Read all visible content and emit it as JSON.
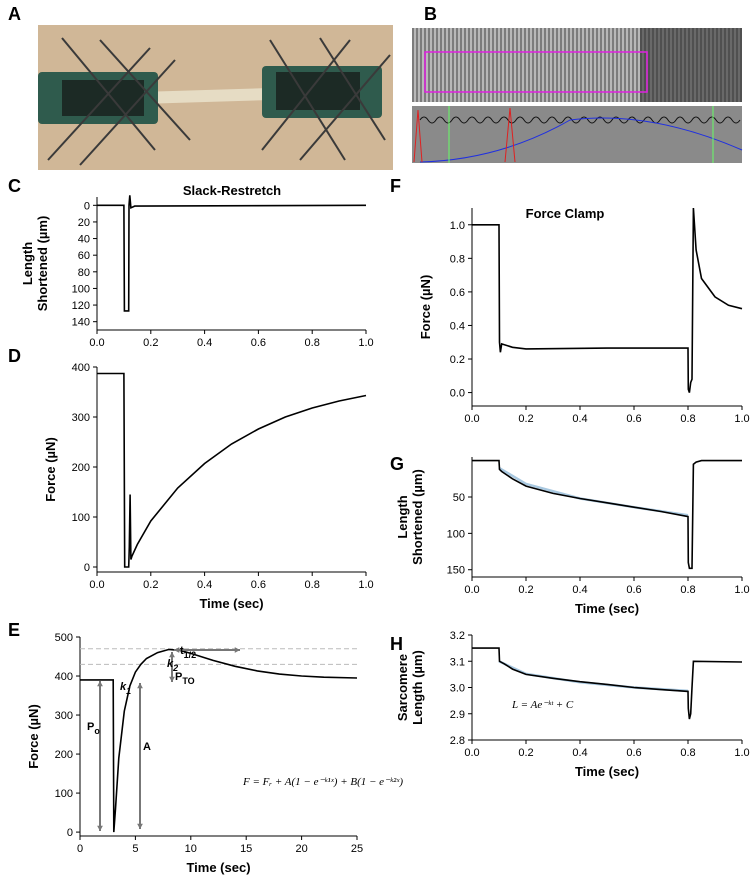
{
  "panel_labels": [
    "A",
    "B"
  ],
  "chart_data": [
    {
      "type": "line",
      "panel": "C",
      "title": "Slack-Restretch",
      "ylabel": [
        "Length",
        "Shortened (µm)"
      ],
      "xlim": [
        0,
        1
      ],
      "xticks": [
        {
          "value": 0,
          "label": "0.0"
        },
        0.2,
        0.4,
        0.6,
        0.8,
        {
          "value": 1,
          "label": "1.0"
        }
      ],
      "ylim": [
        -10,
        150
      ],
      "yticks": [
        0,
        20,
        40,
        60,
        80,
        100,
        120,
        140
      ],
      "y_inverted": true,
      "series": [
        {
          "color": "#000000",
          "x": [
            0,
            0.1,
            0.102,
            0.118,
            0.119,
            0.122,
            0.126,
            0.14,
            1
          ],
          "values": [
            0,
            0,
            127,
            127,
            0,
            -12,
            3,
            1,
            0
          ]
        }
      ]
    },
    {
      "type": "line",
      "panel": "D",
      "ylabel": [
        "Force (µN)"
      ],
      "xlabel": "Time (sec)",
      "xlim": [
        0,
        1
      ],
      "xticks": [
        {
          "value": 0,
          "label": "0.0"
        },
        0.2,
        0.4,
        0.6,
        0.8,
        {
          "value": 1,
          "label": "1.0"
        }
      ],
      "ylim": [
        -10,
        400
      ],
      "yticks": [
        0,
        100,
        200,
        300,
        400
      ],
      "series": [
        {
          "color": "#000000",
          "x": [
            0,
            0.1,
            0.103,
            0.118,
            0.12,
            0.123,
            0.126,
            0.13,
            0.15,
            0.2,
            0.3,
            0.4,
            0.5,
            0.6,
            0.7,
            0.8,
            0.9,
            1
          ],
          "values": [
            387,
            387,
            0,
            0,
            40,
            145,
            15,
            22,
            45,
            92,
            158,
            207,
            246,
            276,
            300,
            318,
            332,
            343
          ]
        }
      ]
    },
    {
      "type": "line",
      "panel": "E",
      "ylabel": [
        "Force (µN)"
      ],
      "xlabel": "Time (sec)",
      "xlim": [
        0,
        25
      ],
      "xticks": [
        0,
        5,
        10,
        15,
        20,
        25
      ],
      "ylim": [
        -10,
        500
      ],
      "yticks": [
        0,
        100,
        200,
        300,
        400,
        500
      ],
      "hlines": [
        470,
        430
      ],
      "annotations": [
        {
          "main": "P",
          "sub": "o"
        },
        {
          "main": "A"
        },
        {
          "main": "k",
          "sub": "1"
        },
        {
          "main": "k",
          "sub": "2"
        },
        {
          "main": "P",
          "sub": "TO"
        },
        {
          "main": "t",
          "sub": "1/2"
        }
      ],
      "equation": "F = Fᵣ + A(1 − e⁻ᵏ¹ˣ) + B(1 − e⁻ᵏ²ˣ)",
      "series": [
        {
          "color": "#000000",
          "x": [
            0,
            3,
            3.05,
            3.2,
            3.5,
            4,
            4.5,
            5,
            5.5,
            6,
            7,
            8,
            9,
            10,
            12,
            14,
            16,
            18,
            20,
            22,
            25
          ],
          "values": [
            390,
            390,
            0,
            60,
            190,
            310,
            375,
            410,
            430,
            445,
            460,
            468,
            466,
            458,
            440,
            425,
            413,
            405,
            400,
            397,
            395
          ]
        }
      ]
    },
    {
      "type": "line",
      "panel": "F",
      "title": "Force Clamp",
      "ylabel": [
        "Force (µN)"
      ],
      "xlim": [
        0,
        1
      ],
      "xticks": [
        {
          "value": 0,
          "label": "0.0"
        },
        0.2,
        0.4,
        0.6,
        0.8,
        {
          "value": 1,
          "label": "1.0"
        }
      ],
      "ylim": [
        -0.08,
        1.1
      ],
      "yticks": [
        {
          "value": 0,
          "label": "0.0"
        },
        0.2,
        0.4,
        0.6,
        0.8,
        {
          "value": 1,
          "label": "1.0"
        }
      ],
      "series": [
        {
          "color": "#000000",
          "x": [
            0,
            0.1,
            0.102,
            0.105,
            0.11,
            0.15,
            0.2,
            0.5,
            0.8,
            0.801,
            0.805,
            0.81,
            0.815,
            0.82,
            0.83,
            0.85,
            0.9,
            0.95,
            1
          ],
          "values": [
            1.0,
            1.0,
            0.3,
            0.24,
            0.29,
            0.27,
            0.26,
            0.265,
            0.265,
            0.02,
            0.0,
            0.06,
            0.08,
            1.1,
            0.85,
            0.68,
            0.57,
            0.52,
            0.5
          ]
        }
      ]
    },
    {
      "type": "line",
      "panel": "G",
      "ylabel": [
        "Length",
        "Shortened (µm)"
      ],
      "xlabel": "Time (sec)",
      "xlim": [
        0,
        1
      ],
      "xticks": [
        {
          "value": 0,
          "label": "0.0"
        },
        0.2,
        0.4,
        0.6,
        0.8,
        {
          "value": 1,
          "label": "1.0"
        }
      ],
      "ylim": [
        -5,
        160
      ],
      "yticks": [
        50,
        100,
        150
      ],
      "y_inverted": true,
      "series": [
        {
          "color": "#a8c8e0",
          "x": [
            0.1,
            0.2,
            0.4,
            0.6,
            0.8
          ],
          "values": [
            10,
            32,
            52,
            64,
            75
          ]
        },
        {
          "color": "#000000",
          "x": [
            0,
            0.1,
            0.102,
            0.11,
            0.15,
            0.2,
            0.3,
            0.4,
            0.5,
            0.6,
            0.7,
            0.8,
            0.801,
            0.805,
            0.815,
            0.82,
            0.83,
            0.85,
            1
          ],
          "values": [
            0,
            0,
            12,
            15,
            25,
            35,
            45,
            52,
            58,
            64,
            70,
            77,
            140,
            148,
            148,
            5,
            2,
            0,
            0
          ]
        }
      ]
    },
    {
      "type": "line",
      "panel": "H",
      "ylabel": [
        "Sarcomere",
        "Length (µm)"
      ],
      "xlabel": "Time (sec)",
      "xlim": [
        0,
        1
      ],
      "xticks": [
        {
          "value": 0,
          "label": "0.0"
        },
        0.2,
        0.4,
        0.6,
        0.8,
        {
          "value": 1,
          "label": "1.0"
        }
      ],
      "ylim": [
        2.8,
        3.2
      ],
      "yticks": [
        2.8,
        2.9,
        {
          "value": 3,
          "label": "3.0"
        },
        3.1,
        3.2
      ],
      "equation": "L = Ae⁻ᵏᵗ + C",
      "series": [
        {
          "color": "#a8c8e0",
          "x": [
            0.1,
            0.2,
            0.4,
            0.6,
            0.8
          ],
          "values": [
            3.1,
            3.052,
            3.02,
            3.0,
            2.987
          ]
        },
        {
          "color": "#000000",
          "x": [
            0,
            0.1,
            0.102,
            0.12,
            0.15,
            0.2,
            0.3,
            0.4,
            0.5,
            0.6,
            0.7,
            0.8,
            0.801,
            0.805,
            0.81,
            0.815,
            0.82,
            1
          ],
          "values": [
            3.15,
            3.15,
            3.1,
            3.09,
            3.07,
            3.05,
            3.035,
            3.022,
            3.012,
            3.0,
            2.992,
            2.985,
            2.92,
            2.88,
            2.9,
            3.0,
            3.1,
            3.097
          ]
        }
      ]
    }
  ]
}
